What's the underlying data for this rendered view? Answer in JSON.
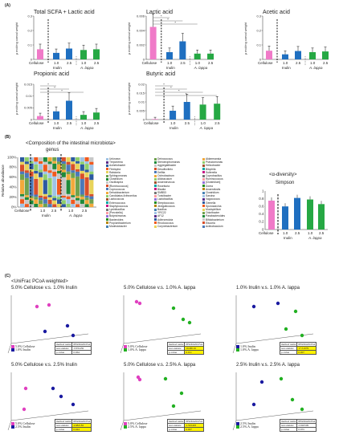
{
  "panel_a": {
    "label": "(A)",
    "ylabel": "μ mol/mg caecal weight",
    "xcat": {
      "cellulose": "Cellulose",
      "d1": "1.0",
      "d2": "2.5",
      "inulin": "Inulin",
      "alappa": "A. lappa"
    },
    "charts": [
      {
        "title": "Total SCFA + Lactic acid",
        "ticks": [
          "0.3",
          "0.2",
          "0.1",
          "0"
        ],
        "chart_data": {
          "type": "bar",
          "categories": [
            "Cellulose",
            "Inulin 1.0",
            "Inulin 2.5",
            "A. lappa 1.0",
            "A. lappa 2.5"
          ],
          "values": [
            0.07,
            0.045,
            0.075,
            0.065,
            0.07
          ],
          "ylim": [
            0,
            0.3
          ]
        }
      },
      {
        "title": "Lactic acid",
        "ticks": [
          "0.006",
          "0.004",
          "0.002",
          "0"
        ],
        "chart_data": {
          "type": "bar",
          "categories": [
            "Cellulose",
            "Inulin 1.0",
            "Inulin 2.5",
            "A. lappa 1.0",
            "A. lappa 2.5"
          ],
          "values": [
            0.0045,
            0.001,
            0.0025,
            0.0008,
            0.0008
          ],
          "ylim": [
            0,
            0.006
          ]
        }
      },
      {
        "title": "Acetic acid",
        "ticks": [
          "0.3",
          "0.2",
          "0.1",
          "0"
        ],
        "chart_data": {
          "type": "bar",
          "categories": [
            "Cellulose",
            "Inulin 1.0",
            "Inulin 2.5",
            "A. lappa 1.0",
            "A. lappa 2.5"
          ],
          "values": [
            0.06,
            0.035,
            0.058,
            0.05,
            0.055
          ],
          "ylim": [
            0,
            0.3
          ]
        }
      },
      {
        "title": "Propionic acid",
        "ticks": [
          "0.015",
          "0.01",
          "0.005",
          "0"
        ],
        "chart_data": {
          "type": "bar",
          "categories": [
            "Cellulose",
            "Inulin 1.0",
            "Inulin 2.5",
            "A. lappa 1.0",
            "A. lappa 2.5"
          ],
          "values": [
            0.0015,
            0.0035,
            0.008,
            0.002,
            0.003
          ],
          "ylim": [
            0,
            0.015
          ]
        }
      },
      {
        "title": "Butyric acid",
        "ticks": [
          "0.02",
          "0.015",
          "0.01",
          "0.005",
          "0"
        ],
        "chart_data": {
          "type": "bar",
          "categories": [
            "Cellulose",
            "Inulin 1.0",
            "Inulin 2.5",
            "A. lappa 1.0",
            "A. lappa 2.5"
          ],
          "values": [
            0.0003,
            0.005,
            0.01,
            0.0085,
            0.009
          ],
          "ylim": [
            0,
            0.02
          ]
        }
      }
    ]
  },
  "panel_b": {
    "label": "(B)",
    "title": "<Composition of the intestinal microbiota>",
    "subtitle": "genus",
    "ylabel": "Relative abundance",
    "yticks": [
      "100%",
      "80%",
      "60%",
      "40%",
      "20%",
      "0%"
    ],
    "xcat": {
      "cellulose": "Cellulose",
      "d1": "1.0",
      "d2": "2.5",
      "inulin": "Inulin",
      "alappa": "A. lappa"
    },
    "legend_col1": [
      "Unknown",
      "Treponema",
      "Acinetobacter",
      "Flexispira",
      "Ralstonia",
      "Sphingomonas",
      "Clostridium",
      "Oscillospira",
      "[Ruminococcus]",
      "Coprococcus",
      "Dehalobacterium",
      "Candidatus Arthromitus",
      "Lactococcus",
      "Enterococcus",
      "Staphylococcus",
      "Lysinibacillus",
      "[Prevotella]",
      "Butyricimonas",
      "Bacteroides",
      "Propionibacterium",
      "Modestobacter"
    ],
    "legend_col2": [
      "Deinococcus",
      "Stenotrophomonas",
      "Aggregatibacter",
      "Desulfovibrio",
      "Delftia",
      "Ochrobactrum",
      "Allobaculum",
      "Anaerotruncus",
      "Roseburia",
      "Blautia",
      "SMB53",
      "Turicibacter",
      "Lactobacillus",
      "Streptococcus",
      "Jeotgalicoccus",
      "Bacillus",
      "YRC22",
      "AF12",
      "Adlercreutzia",
      "Rhodococcus",
      "Corynebacterium"
    ],
    "legend_col3": [
      "Akkermansia",
      "Pseudomonas",
      "Helicobacter",
      "Bilophila",
      "Sutterella",
      "Coprobacillus",
      "Ruminococcus",
      "[Clostridium]",
      "Dorea",
      "Anaerofustis",
      "Clostridium",
      "Sarcina",
      "Vagococcus",
      "Gemella",
      "Sporosarcina",
      "Mucispirillum",
      "Odoribacter",
      "Parabacteroides",
      "Bifidobacterium",
      "Eiscoria",
      "Actinobaculum"
    ],
    "simpson": {
      "title": "<α-diversity>",
      "subtitle": "Simpson",
      "yticks": [
        "1",
        "0.8",
        "0.6",
        "0.4",
        "0.2",
        "0"
      ],
      "chart_data": {
        "type": "bar",
        "categories": [
          "Cellulose",
          "Inulin 1.0",
          "Inulin 2.5",
          "A. lappa 1.0",
          "A. lappa 2.5"
        ],
        "values": [
          0.75,
          0.6,
          0.82,
          0.78,
          0.66
        ],
        "ylim": [
          0,
          1
        ]
      }
    }
  },
  "panel_c": {
    "label": "(C)",
    "title": "<UniFrac PCoA weighted>",
    "plots": [
      {
        "title": "5.0% Cellulose v.s. 1.0% Inulin",
        "leg1": "5.0% Cellulose",
        "leg2": "1.0% Inulin",
        "c1": "#e040c0",
        "c2": "#1a1aa0",
        "stat": "3.876459",
        "p": "0.064",
        "yellow": false
      },
      {
        "title": "5.0% Cellulose v.s. 1.0% A. lappa",
        "leg1": "5.0% Cellulose",
        "leg2": "1.0% A. lappa",
        "c1": "#e040c0",
        "c2": "#22b022",
        "stat": "16.68116",
        "p": "0.011",
        "yellow": true
      },
      {
        "title": "1.0% Inulin v.s. 1.0% A. lappa",
        "leg1": "1.0% Inulin",
        "leg2": "1.0% A. lappa",
        "c1": "#1a1aa0",
        "c2": "#22b022",
        "stat": "17.51979",
        "p": "0.007",
        "yellow": true
      },
      {
        "title": "5.0% Cellulose v.s. 2.5% Inulin",
        "leg1": "5.0% Cellulose",
        "leg2": "2.5% Inulin",
        "c1": "#e040c0",
        "c2": "#1a1aa0",
        "stat": "4.682183",
        "p": "0.044",
        "yellow": true
      },
      {
        "title": "5.0% Cellulose v.s. 2.5% A. lappa",
        "leg1": "5.0% Cellulose",
        "leg2": "2.5% A. lappa",
        "c1": "#e040c0",
        "c2": "#22b022",
        "stat": "2.563493",
        "p": "0.007",
        "yellow": true
      },
      {
        "title": "2.5% Inulin v.s. 2.5% A. lappa",
        "leg1": "2.5% Inulin",
        "leg2": "2.5% A. lappa",
        "c1": "#1a1aa0",
        "c2": "#22b022",
        "stat": "2.026509",
        "p": "0.055",
        "yellow": false
      }
    ],
    "method_name_label": "method name",
    "method_name": "PERMANOVA",
    "test_stat_label": "test statistic",
    "pvalue_label": "p-value"
  },
  "colors": {
    "pink": "#f07ac8",
    "blue": "#1f6fc0",
    "green": "#26a844"
  }
}
